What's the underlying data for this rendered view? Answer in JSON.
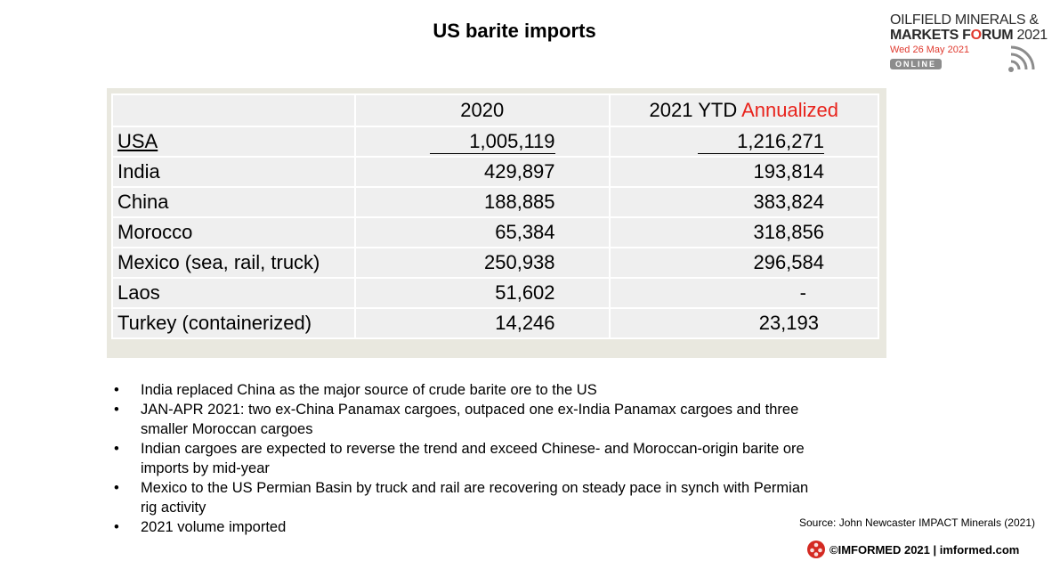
{
  "title": "US barite imports",
  "logo": {
    "line1": "OILFIELD MINERALS &",
    "line2_prefix": "MARKETS F",
    "line2_o": "O",
    "line2_suffix": "RUM",
    "line2_year": "2021",
    "date": "Wed 26 May 2021",
    "badge": "ONLINE"
  },
  "table": {
    "header": {
      "col0": "",
      "col1": "2020",
      "col2_prefix": "2021 YTD ",
      "col2_highlight": "Annualized"
    },
    "rows": [
      {
        "country": "USA",
        "v2020": "1,005,119",
        "v2021": "1,216,271"
      },
      {
        "country": "India",
        "v2020": "429,897",
        "v2021": "193,814"
      },
      {
        "country": "China",
        "v2020": "188,885",
        "v2021": "383,824"
      },
      {
        "country": "Morocco",
        "v2020": "65,384",
        "v2021": "318,856"
      },
      {
        "country": "Mexico (sea, rail, truck)",
        "v2020": "250,938",
        "v2021": "296,584"
      },
      {
        "country": "Laos",
        "v2020": "51,602",
        "v2021": "-"
      },
      {
        "country": "Turkey (containerized)",
        "v2020": "14,246",
        "v2021": "23,193"
      }
    ]
  },
  "bullets": [
    "India replaced China as the major source of crude barite ore to the US",
    "JAN-APR 2021: two ex-China Panamax cargoes, outpaced one ex-India Panamax cargoes and three smaller Moroccan cargoes",
    "Indian cargoes are expected to reverse the trend and exceed Chinese- and Moroccan-origin barite ore imports by mid-year",
    "Mexico to the US Permian Basin by truck and rail are recovering on steady pace in synch with Permian rig activity",
    "2021 volume imported"
  ],
  "bullet_char": "•",
  "source": "Source: John Newcaster IMPACT Minerals (2021)",
  "footer": "©IMFORMED 2021  | imformed.com",
  "colors": {
    "accent_red": "#e8231c",
    "table_bg": "#efefef",
    "frame_bg": "#e9e8df"
  }
}
